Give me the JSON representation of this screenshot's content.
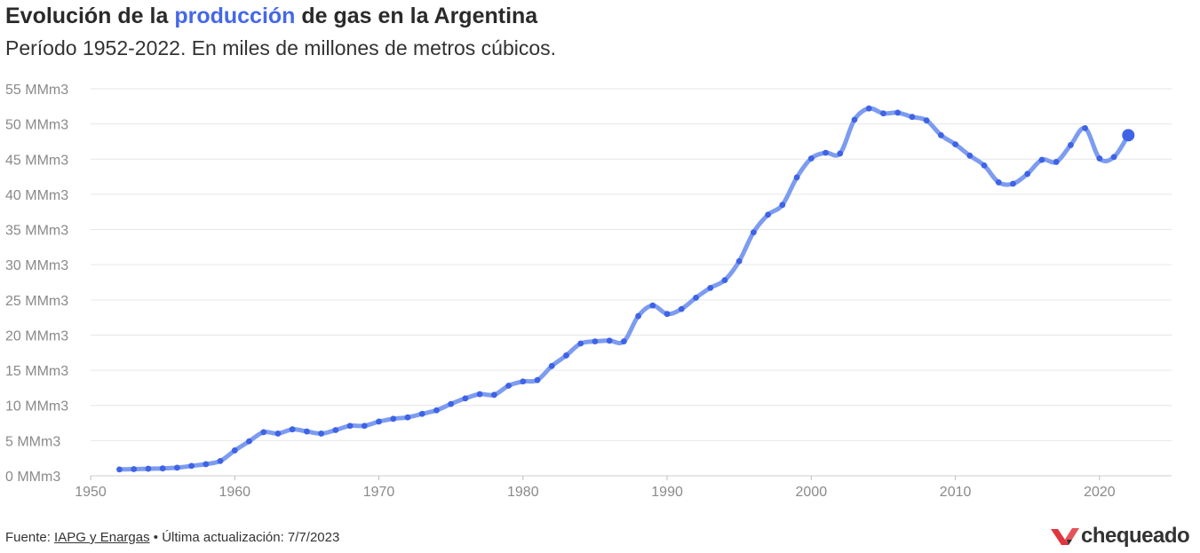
{
  "title": {
    "part1": "Evolución de la ",
    "highlight": "producción",
    "part2": " de gas en la Argentina"
  },
  "subtitle": "Período 1952-2022. En miles de millones de metros cúbicos.",
  "footer": {
    "prefix": "Fuente: ",
    "source_link": "IAPG y Enargas",
    "suffix": " • Última actualización: 7/7/2023"
  },
  "logo": {
    "text": "chequeado",
    "color": "#e0343f"
  },
  "colors": {
    "line": "#7d9cf0",
    "point": "#3f63e6",
    "grid": "#e6e6e6",
    "highlight": "#4568e8"
  },
  "chart_data": {
    "type": "line",
    "x_ticks": [
      1950,
      1960,
      1970,
      1980,
      1990,
      2000,
      2010,
      2020
    ],
    "y_ticks": [
      0,
      5,
      10,
      15,
      20,
      25,
      30,
      35,
      40,
      45,
      50,
      55
    ],
    "y_tick_suffix": " MMm3",
    "xlim": [
      1950,
      2025
    ],
    "ylim": [
      0,
      55
    ],
    "grid": "horizontal",
    "x": [
      1952,
      1953,
      1954,
      1955,
      1956,
      1957,
      1958,
      1959,
      1960,
      1961,
      1962,
      1963,
      1964,
      1965,
      1966,
      1967,
      1968,
      1969,
      1970,
      1971,
      1972,
      1973,
      1974,
      1975,
      1976,
      1977,
      1978,
      1979,
      1980,
      1981,
      1982,
      1983,
      1984,
      1985,
      1986,
      1987,
      1988,
      1989,
      1990,
      1991,
      1992,
      1993,
      1994,
      1995,
      1996,
      1997,
      1998,
      1999,
      2000,
      2001,
      2002,
      2003,
      2004,
      2005,
      2006,
      2007,
      2008,
      2009,
      2010,
      2011,
      2012,
      2013,
      2014,
      2015,
      2016,
      2017,
      2018,
      2019,
      2020,
      2021,
      2022
    ],
    "y": [
      0.9,
      0.95,
      1.0,
      1.05,
      1.15,
      1.4,
      1.65,
      2.1,
      3.6,
      4.9,
      6.2,
      6.0,
      6.6,
      6.3,
      6.0,
      6.5,
      7.1,
      7.1,
      7.7,
      8.1,
      8.3,
      8.8,
      9.3,
      10.2,
      11.0,
      11.6,
      11.5,
      12.8,
      13.4,
      13.6,
      15.6,
      17.1,
      18.8,
      19.1,
      19.2,
      19.1,
      22.7,
      24.2,
      23.0,
      23.7,
      25.3,
      26.7,
      27.8,
      30.5,
      34.6,
      37.1,
      38.5,
      42.4,
      45.1,
      45.9,
      45.8,
      50.6,
      52.2,
      51.5,
      51.6,
      51.0,
      50.5,
      48.4,
      47.1,
      45.5,
      44.1,
      41.7,
      41.5,
      42.9,
      44.9,
      44.6,
      47.0,
      49.4,
      45.1,
      45.3,
      48.4
    ]
  }
}
